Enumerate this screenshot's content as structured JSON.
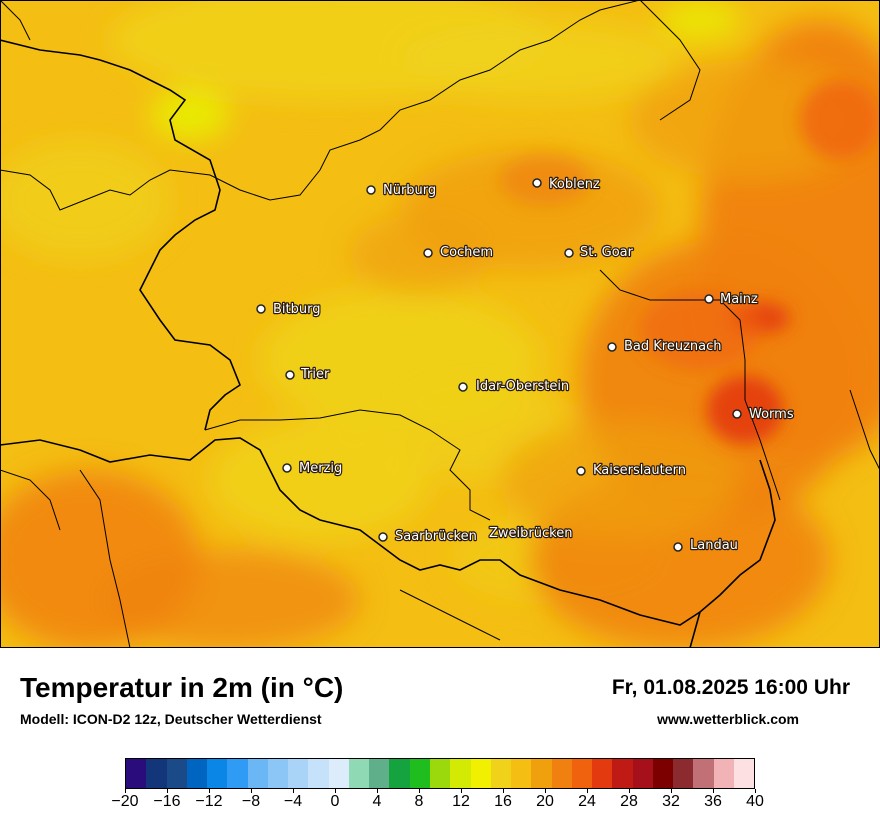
{
  "map": {
    "cities": [
      {
        "name": "Nürburg"
      },
      {
        "name": "Koblenz"
      },
      {
        "name": "Cochem"
      },
      {
        "name": "St. Goar"
      },
      {
        "name": "Bitburg"
      },
      {
        "name": "Mainz"
      },
      {
        "name": "Bad Kreuznach"
      },
      {
        "name": "Trier"
      },
      {
        "name": "Idar-Oberstein"
      },
      {
        "name": "Worms"
      },
      {
        "name": "Merzig"
      },
      {
        "name": "Kaiserslautern"
      },
      {
        "name": "Saarbrücken"
      },
      {
        "name": "Zweibrücken"
      },
      {
        "name": "Landau"
      }
    ]
  },
  "footer": {
    "title": "Temperatur in 2m (in °C)",
    "model": "Modell: ICON-D2 12z, Deutscher Wetterdienst",
    "valid_time": "Fr, 01.08.2025 16:00 Uhr",
    "website": "www.wetterblick.com"
  },
  "legend": {
    "min": -20,
    "max": 40,
    "tick_labels": [
      "−20",
      "−16",
      "−12",
      "−8",
      "−4",
      "0",
      "4",
      "8",
      "12",
      "16",
      "20",
      "24",
      "28",
      "32",
      "36",
      "40"
    ],
    "colors": [
      "#2b0c7d",
      "#13357a",
      "#1b4a88",
      "#0065c0",
      "#0a86e6",
      "#2f9bf4",
      "#6bb6f4",
      "#8cc6f6",
      "#a9d4f8",
      "#c6e2fa",
      "#dcecfb",
      "#8fd9b4",
      "#5fb08a",
      "#15a33f",
      "#1fbd1d",
      "#9bd80c",
      "#d3ea05",
      "#f0f000",
      "#f0d21a",
      "#f4be13",
      "#f0a00c",
      "#f08110",
      "#f0620e",
      "#e33a10",
      "#c01a14",
      "#a5101a",
      "#7c0000",
      "#8b2a2f",
      "#c17075",
      "#f2b3b6",
      "#fde0e2"
    ]
  }
}
